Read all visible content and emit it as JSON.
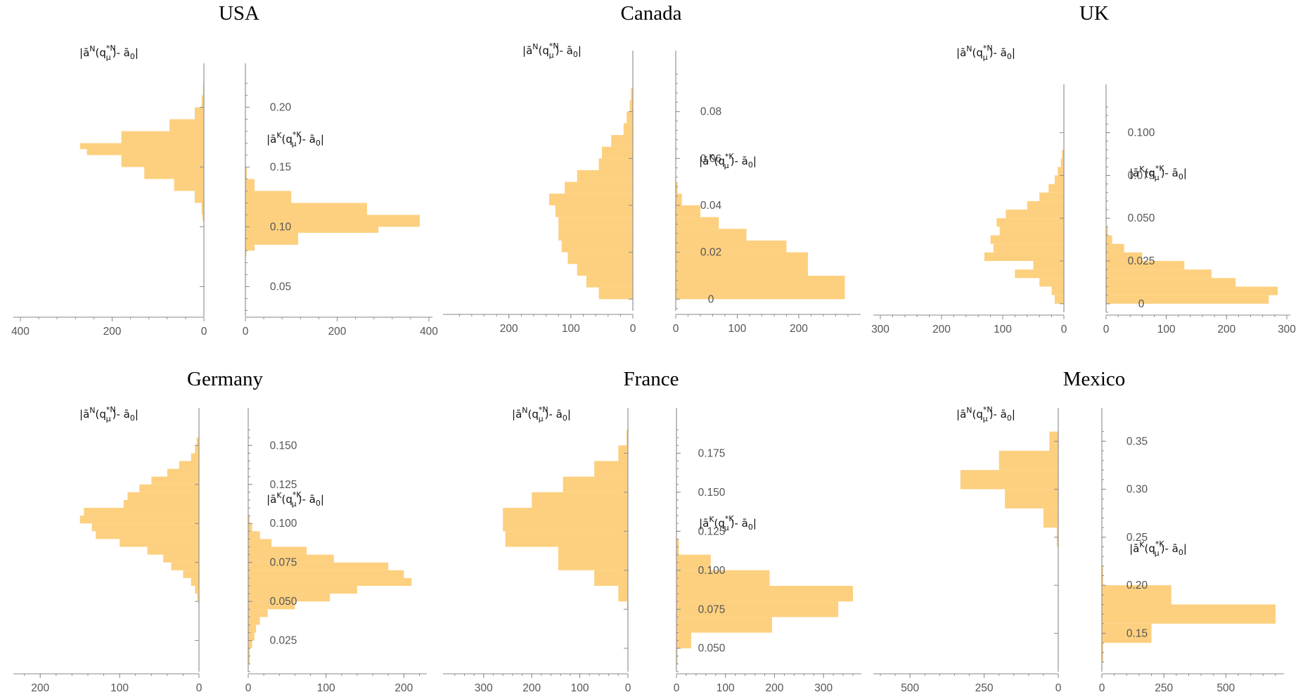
{
  "colors": {
    "bar": "#fdd07f",
    "axis": "#8a8a8a",
    "tick_text": "#555555"
  },
  "label_notation": {
    "N": {
      "sup": "N",
      "sub": "μ",
      "sup2": "*N",
      "text_end": "- ā₀|"
    },
    "K": {
      "sup": "K",
      "sub": "μ",
      "sup2": "*K",
      "text_end": "- ā₀|"
    }
  },
  "chart_data": [
    {
      "type": "bar",
      "title": "USA",
      "series_labels": {
        "N": "|āN(qμ*N)- ā0|",
        "K": "|āK(qμ*K)- ā0|"
      },
      "left": {
        "ylim": [
          0.025,
          0.225
        ],
        "xlim": [
          400,
          0
        ],
        "xticks": [
          "400",
          "200",
          "0"
        ],
        "xtick_values": [
          400,
          200,
          0
        ],
        "bins": [
          [
            0.105,
            0.11,
            3
          ],
          [
            0.11,
            0.12,
            5
          ],
          [
            0.12,
            0.13,
            20
          ],
          [
            0.13,
            0.14,
            65
          ],
          [
            0.14,
            0.15,
            130
          ],
          [
            0.15,
            0.16,
            180
          ],
          [
            0.16,
            0.165,
            255
          ],
          [
            0.165,
            0.17,
            270
          ],
          [
            0.17,
            0.18,
            180
          ],
          [
            0.18,
            0.19,
            75
          ],
          [
            0.19,
            0.2,
            20
          ],
          [
            0.2,
            0.21,
            5
          ],
          [
            0.21,
            0.22,
            2
          ]
        ]
      },
      "right": {
        "ylim": [
          0.025,
          0.225
        ],
        "xlim": [
          0,
          400
        ],
        "xticks": [
          "0",
          "200",
          "400"
        ],
        "xtick_values": [
          0,
          200,
          400
        ],
        "bins": [
          [
            0.075,
            0.08,
            2
          ],
          [
            0.08,
            0.085,
            20
          ],
          [
            0.085,
            0.095,
            115
          ],
          [
            0.095,
            0.1,
            290
          ],
          [
            0.1,
            0.11,
            380
          ],
          [
            0.11,
            0.12,
            265
          ],
          [
            0.12,
            0.13,
            100
          ],
          [
            0.13,
            0.14,
            20
          ],
          [
            0.14,
            0.15,
            3
          ]
        ]
      },
      "yticks": [
        "0.05",
        "0.10",
        "0.15",
        "0.20"
      ],
      "ytick_values": [
        0.05,
        0.1,
        0.15,
        0.2
      ]
    },
    {
      "type": "bar",
      "title": "Canada",
      "series_labels": {
        "N": "|āN(qμ*N)- ā0|",
        "K": "|āK(qμ*K)- ā0|"
      },
      "left": {
        "ylim": [
          -0.005,
          0.1
        ],
        "xlim": [
          295,
          0
        ],
        "xticks": [
          "200",
          "100",
          "0"
        ],
        "xtick_values": [
          200,
          100,
          0
        ],
        "bins": [
          [
            0,
            0.005,
            55
          ],
          [
            0.005,
            0.01,
            75
          ],
          [
            0.01,
            0.015,
            90
          ],
          [
            0.015,
            0.02,
            105
          ],
          [
            0.02,
            0.025,
            115
          ],
          [
            0.025,
            0.03,
            120
          ],
          [
            0.03,
            0.035,
            120
          ],
          [
            0.035,
            0.04,
            125
          ],
          [
            0.04,
            0.045,
            135
          ],
          [
            0.045,
            0.05,
            110
          ],
          [
            0.05,
            0.055,
            90
          ],
          [
            0.055,
            0.06,
            55
          ],
          [
            0.06,
            0.065,
            50
          ],
          [
            0.065,
            0.07,
            35
          ],
          [
            0.07,
            0.075,
            15
          ],
          [
            0.075,
            0.08,
            10
          ],
          [
            0.08,
            0.085,
            5
          ],
          [
            0.085,
            0.09,
            3
          ]
        ]
      },
      "right": {
        "ylim": [
          -0.005,
          0.1
        ],
        "xlim": [
          0,
          295
        ],
        "xticks": [
          "0",
          "100",
          "200"
        ],
        "xtick_values": [
          0,
          100,
          200
        ],
        "bins": [
          [
            0,
            0.01,
            275
          ],
          [
            0.01,
            0.02,
            215
          ],
          [
            0.02,
            0.025,
            180
          ],
          [
            0.025,
            0.03,
            115
          ],
          [
            0.03,
            0.035,
            70
          ],
          [
            0.035,
            0.04,
            40
          ],
          [
            0.04,
            0.045,
            10
          ],
          [
            0.045,
            0.05,
            3
          ]
        ]
      },
      "yticks": [
        "0",
        "0.02",
        "0.04",
        "0.06",
        "0.08"
      ],
      "ytick_values": [
        0,
        0.02,
        0.04,
        0.06,
        0.08
      ]
    },
    {
      "type": "bar",
      "title": "UK",
      "series_labels": {
        "N": "|āN(qμ*N)- ā0|",
        "K": "|āK(qμ*K)- ā0|"
      },
      "left": {
        "ylim": [
          -0.005,
          0.12
        ],
        "xlim": [
          300,
          0
        ],
        "xticks": [
          "300",
          "200",
          "100",
          "0"
        ],
        "xtick_values": [
          300,
          200,
          100,
          0
        ],
        "bins": [
          [
            0,
            0.005,
            15
          ],
          [
            0.005,
            0.01,
            20
          ],
          [
            0.01,
            0.015,
            40
          ],
          [
            0.015,
            0.02,
            80
          ],
          [
            0.02,
            0.025,
            50
          ],
          [
            0.025,
            0.03,
            130
          ],
          [
            0.03,
            0.035,
            115
          ],
          [
            0.035,
            0.04,
            120
          ],
          [
            0.04,
            0.045,
            105
          ],
          [
            0.045,
            0.05,
            110
          ],
          [
            0.05,
            0.055,
            95
          ],
          [
            0.055,
            0.06,
            60
          ],
          [
            0.06,
            0.065,
            40
          ],
          [
            0.065,
            0.07,
            25
          ],
          [
            0.07,
            0.075,
            15
          ],
          [
            0.075,
            0.08,
            10
          ],
          [
            0.08,
            0.085,
            5
          ],
          [
            0.085,
            0.09,
            3
          ]
        ]
      },
      "right": {
        "ylim": [
          -0.005,
          0.12
        ],
        "xlim": [
          0,
          300
        ],
        "xticks": [
          "0",
          "100",
          "200",
          "300"
        ],
        "xtick_values": [
          0,
          100,
          200,
          300
        ],
        "bins": [
          [
            0,
            0.005,
            270
          ],
          [
            0.005,
            0.01,
            285
          ],
          [
            0.01,
            0.015,
            215
          ],
          [
            0.015,
            0.02,
            175
          ],
          [
            0.02,
            0.025,
            130
          ],
          [
            0.025,
            0.03,
            60
          ],
          [
            0.03,
            0.035,
            30
          ],
          [
            0.035,
            0.04,
            10
          ],
          [
            0.04,
            0.045,
            3
          ]
        ]
      },
      "yticks": [
        "0",
        "0.025",
        "0.050",
        "0.075",
        "0.100"
      ],
      "ytick_values": [
        0,
        0.025,
        0.05,
        0.075,
        0.1
      ]
    },
    {
      "type": "bar",
      "title": "Germany",
      "series_labels": {
        "N": "|āN(qμ*N)- ā0|",
        "K": "|āK(qμ*K)- ā0|"
      },
      "left": {
        "ylim": [
          0.005,
          0.165
        ],
        "xlim": [
          225,
          0
        ],
        "xticks": [
          "200",
          "100",
          "0"
        ],
        "xtick_values": [
          200,
          100,
          0
        ],
        "bins": [
          [
            0.05,
            0.055,
            2
          ],
          [
            0.055,
            0.06,
            5
          ],
          [
            0.06,
            0.065,
            10
          ],
          [
            0.065,
            0.07,
            20
          ],
          [
            0.07,
            0.075,
            35
          ],
          [
            0.075,
            0.08,
            45
          ],
          [
            0.08,
            0.085,
            65
          ],
          [
            0.085,
            0.09,
            100
          ],
          [
            0.09,
            0.095,
            130
          ],
          [
            0.095,
            0.1,
            135
          ],
          [
            0.1,
            0.105,
            150
          ],
          [
            0.105,
            0.11,
            145
          ],
          [
            0.11,
            0.115,
            95
          ],
          [
            0.115,
            0.12,
            90
          ],
          [
            0.12,
            0.125,
            75
          ],
          [
            0.125,
            0.13,
            60
          ],
          [
            0.13,
            0.135,
            40
          ],
          [
            0.135,
            0.14,
            25
          ],
          [
            0.14,
            0.145,
            10
          ],
          [
            0.145,
            0.15,
            5
          ],
          [
            0.15,
            0.155,
            3
          ]
        ]
      },
      "right": {
        "ylim": [
          0.005,
          0.165
        ],
        "xlim": [
          0,
          225
        ],
        "xticks": [
          "0",
          "100",
          "200"
        ],
        "xtick_values": [
          0,
          100,
          200
        ],
        "bins": [
          [
            0.01,
            0.02,
            2
          ],
          [
            0.02,
            0.025,
            5
          ],
          [
            0.025,
            0.03,
            8
          ],
          [
            0.03,
            0.035,
            10
          ],
          [
            0.035,
            0.04,
            15
          ],
          [
            0.04,
            0.045,
            25
          ],
          [
            0.045,
            0.05,
            60
          ],
          [
            0.05,
            0.055,
            105
          ],
          [
            0.055,
            0.06,
            140
          ],
          [
            0.06,
            0.065,
            210
          ],
          [
            0.065,
            0.07,
            200
          ],
          [
            0.07,
            0.075,
            180
          ],
          [
            0.075,
            0.08,
            110
          ],
          [
            0.08,
            0.085,
            75
          ],
          [
            0.085,
            0.09,
            30
          ],
          [
            0.09,
            0.095,
            15
          ],
          [
            0.095,
            0.1,
            5
          ],
          [
            0.1,
            0.105,
            2
          ]
        ]
      },
      "yticks": [
        "0.025",
        "0.050",
        "0.075",
        "0.100",
        "0.125",
        "0.150"
      ],
      "ytick_values": [
        0.025,
        0.05,
        0.075,
        0.1,
        0.125,
        0.15
      ]
    },
    {
      "type": "bar",
      "title": "France",
      "series_labels": {
        "N": "|āN(qμ*N)- ā0|",
        "K": "|āK(qμ*K)- ā0|"
      },
      "left": {
        "ylim": [
          0.035,
          0.195
        ],
        "xlim": [
          370,
          0
        ],
        "xticks": [
          "300",
          "200",
          "100",
          "0"
        ],
        "xtick_values": [
          300,
          200,
          100,
          0
        ],
        "bins": [
          [
            0.075,
            0.08,
            2
          ],
          [
            0.08,
            0.09,
            20
          ],
          [
            0.09,
            0.1,
            70
          ],
          [
            0.1,
            0.115,
            145
          ],
          [
            0.115,
            0.125,
            255
          ],
          [
            0.125,
            0.14,
            260
          ],
          [
            0.14,
            0.15,
            200
          ],
          [
            0.15,
            0.16,
            135
          ],
          [
            0.16,
            0.17,
            70
          ],
          [
            0.17,
            0.18,
            20
          ],
          [
            0.18,
            0.19,
            3
          ]
        ]
      },
      "right": {
        "ylim": [
          0.035,
          0.195
        ],
        "xlim": [
          0,
          370
        ],
        "xticks": [
          "0",
          "100",
          "200",
          "300"
        ],
        "xtick_values": [
          0,
          100,
          200,
          300
        ],
        "bins": [
          [
            0.04,
            0.05,
            2
          ],
          [
            0.05,
            0.06,
            30
          ],
          [
            0.06,
            0.07,
            195
          ],
          [
            0.07,
            0.08,
            330
          ],
          [
            0.08,
            0.09,
            360
          ],
          [
            0.09,
            0.1,
            190
          ],
          [
            0.1,
            0.11,
            70
          ],
          [
            0.11,
            0.12,
            5
          ]
        ]
      },
      "yticks": [
        "0.050",
        "0.075",
        "0.100",
        "0.125",
        "0.150",
        "0.175"
      ],
      "ytick_values": [
        0.05,
        0.075,
        0.1,
        0.125,
        0.15,
        0.175
      ]
    },
    {
      "type": "bar",
      "title": "Mexico",
      "series_labels": {
        "N": "|āN(qμ*N)- ā0|",
        "K": "|āK(qμ*K)- ā0|"
      },
      "left": {
        "ylim": [
          0.11,
          0.37
        ],
        "xlim": [
          600,
          0
        ],
        "xticks": [
          "500",
          "250",
          "0"
        ],
        "xtick_values": [
          500,
          250,
          0
        ],
        "bins": [
          [
            0.24,
            0.26,
            5
          ],
          [
            0.26,
            0.28,
            50
          ],
          [
            0.28,
            0.3,
            180
          ],
          [
            0.3,
            0.32,
            330
          ],
          [
            0.32,
            0.34,
            200
          ],
          [
            0.34,
            0.36,
            30
          ]
        ]
      },
      "right": {
        "ylim": [
          0.11,
          0.37
        ],
        "xlim": [
          0,
          720
        ],
        "xticks": [
          "0",
          "250",
          "500"
        ],
        "xtick_values": [
          0,
          250,
          500
        ],
        "bins": [
          [
            0.12,
            0.14,
            5
          ],
          [
            0.14,
            0.16,
            200
          ],
          [
            0.16,
            0.18,
            700
          ],
          [
            0.18,
            0.2,
            280
          ],
          [
            0.2,
            0.22,
            5
          ]
        ]
      },
      "yticks": [
        "0.15",
        "0.20",
        "0.25",
        "0.30",
        "0.35"
      ],
      "ytick_values": [
        0.15,
        0.2,
        0.25,
        0.3,
        0.35
      ]
    }
  ]
}
